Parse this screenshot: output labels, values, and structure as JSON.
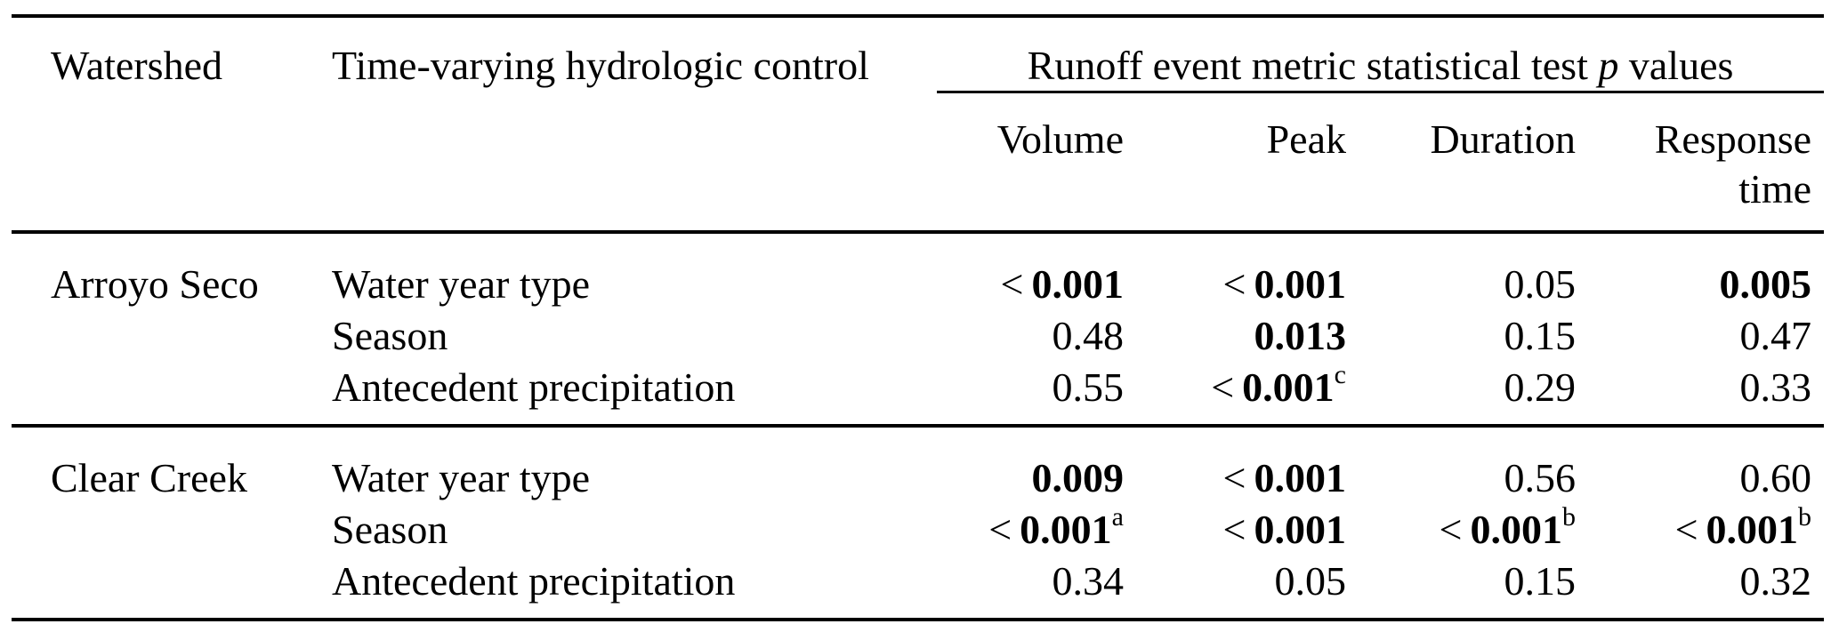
{
  "page": {
    "background_color": "#ffffff",
    "text_color": "#000000"
  },
  "table": {
    "headers": {
      "watershed": "Watershed",
      "control": "Time-varying hydrologic control",
      "span_group": {
        "prefix": "Runoff event metric statistical test ",
        "italic": "p",
        "suffix": " values"
      },
      "metrics": [
        "Volume",
        "Peak",
        "Duration",
        "Response time"
      ]
    },
    "groups": [
      {
        "watershed": "Arroyo Seco",
        "rows": [
          {
            "control": "Water year type",
            "cells": [
              {
                "prefix": "<",
                "value": "0.001",
                "bold": true,
                "sup": ""
              },
              {
                "prefix": "<",
                "value": "0.001",
                "bold": true,
                "sup": ""
              },
              {
                "prefix": "",
                "value": "0.05",
                "bold": false,
                "sup": ""
              },
              {
                "prefix": "",
                "value": "0.005",
                "bold": true,
                "sup": ""
              }
            ]
          },
          {
            "control": "Season",
            "cells": [
              {
                "prefix": "",
                "value": "0.48",
                "bold": false,
                "sup": ""
              },
              {
                "prefix": "",
                "value": "0.013",
                "bold": true,
                "sup": ""
              },
              {
                "prefix": "",
                "value": "0.15",
                "bold": false,
                "sup": ""
              },
              {
                "prefix": "",
                "value": "0.47",
                "bold": false,
                "sup": ""
              }
            ]
          },
          {
            "control": "Antecedent precipitation",
            "cells": [
              {
                "prefix": "",
                "value": "0.55",
                "bold": false,
                "sup": ""
              },
              {
                "prefix": "<",
                "value": "0.001",
                "bold": true,
                "sup": "c"
              },
              {
                "prefix": "",
                "value": "0.29",
                "bold": false,
                "sup": ""
              },
              {
                "prefix": "",
                "value": "0.33",
                "bold": false,
                "sup": ""
              }
            ]
          }
        ]
      },
      {
        "watershed": "Clear Creek",
        "rows": [
          {
            "control": "Water year type",
            "cells": [
              {
                "prefix": "",
                "value": "0.009",
                "bold": true,
                "sup": ""
              },
              {
                "prefix": "<",
                "value": "0.001",
                "bold": true,
                "sup": ""
              },
              {
                "prefix": "",
                "value": "0.56",
                "bold": false,
                "sup": ""
              },
              {
                "prefix": "",
                "value": "0.60",
                "bold": false,
                "sup": ""
              }
            ]
          },
          {
            "control": "Season",
            "cells": [
              {
                "prefix": "<",
                "value": "0.001",
                "bold": true,
                "sup": "a"
              },
              {
                "prefix": "<",
                "value": "0.001",
                "bold": true,
                "sup": ""
              },
              {
                "prefix": "<",
                "value": "0.001",
                "bold": true,
                "sup": "b"
              },
              {
                "prefix": "<",
                "value": "0.001",
                "bold": true,
                "sup": "b"
              }
            ]
          },
          {
            "control": "Antecedent precipitation",
            "cells": [
              {
                "prefix": "",
                "value": "0.34",
                "bold": false,
                "sup": ""
              },
              {
                "prefix": "",
                "value": "0.05",
                "bold": false,
                "sup": ""
              },
              {
                "prefix": "",
                "value": "0.15",
                "bold": false,
                "sup": ""
              },
              {
                "prefix": "",
                "value": "0.32",
                "bold": false,
                "sup": ""
              }
            ]
          }
        ]
      }
    ]
  }
}
